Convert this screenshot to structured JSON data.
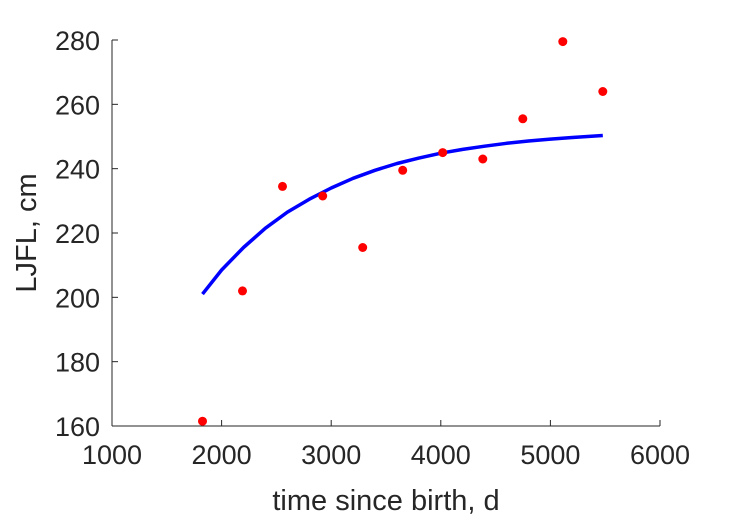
{
  "chart_data": {
    "type": "scatter",
    "title": "",
    "xlabel": "time since birth, d",
    "ylabel": "LJFL, cm",
    "xlim": [
      1000,
      6000
    ],
    "ylim": [
      160,
      280
    ],
    "xticks": [
      "1000",
      "2000",
      "3000",
      "4000",
      "5000",
      "6000"
    ],
    "yticks": [
      "160",
      "180",
      "200",
      "220",
      "240",
      "260",
      "280"
    ],
    "grid": false,
    "legend": "none",
    "series": [
      {
        "kind": "points",
        "color": "#ff0000",
        "x": [
          1826,
          2191,
          2556,
          2922,
          3287,
          3652,
          4017,
          4383,
          4748,
          5113,
          5478
        ],
        "y": [
          161.5,
          202,
          234.5,
          231.5,
          215.5,
          239.5,
          245,
          243,
          255.5,
          279.5,
          264
        ]
      },
      {
        "kind": "line",
        "color": "#0000ff",
        "x": [
          1826,
          2000,
          2200,
          2400,
          2600,
          2800,
          3000,
          3200,
          3400,
          3600,
          3800,
          4000,
          4200,
          4400,
          4600,
          4800,
          5000,
          5200,
          5478
        ],
        "y": [
          201,
          208.5,
          215.5,
          221.5,
          226.5,
          230.5,
          234,
          237,
          239.5,
          241.6,
          243.3,
          244.8,
          246,
          247,
          247.9,
          248.6,
          249.2,
          249.7,
          250.3
        ]
      }
    ]
  }
}
